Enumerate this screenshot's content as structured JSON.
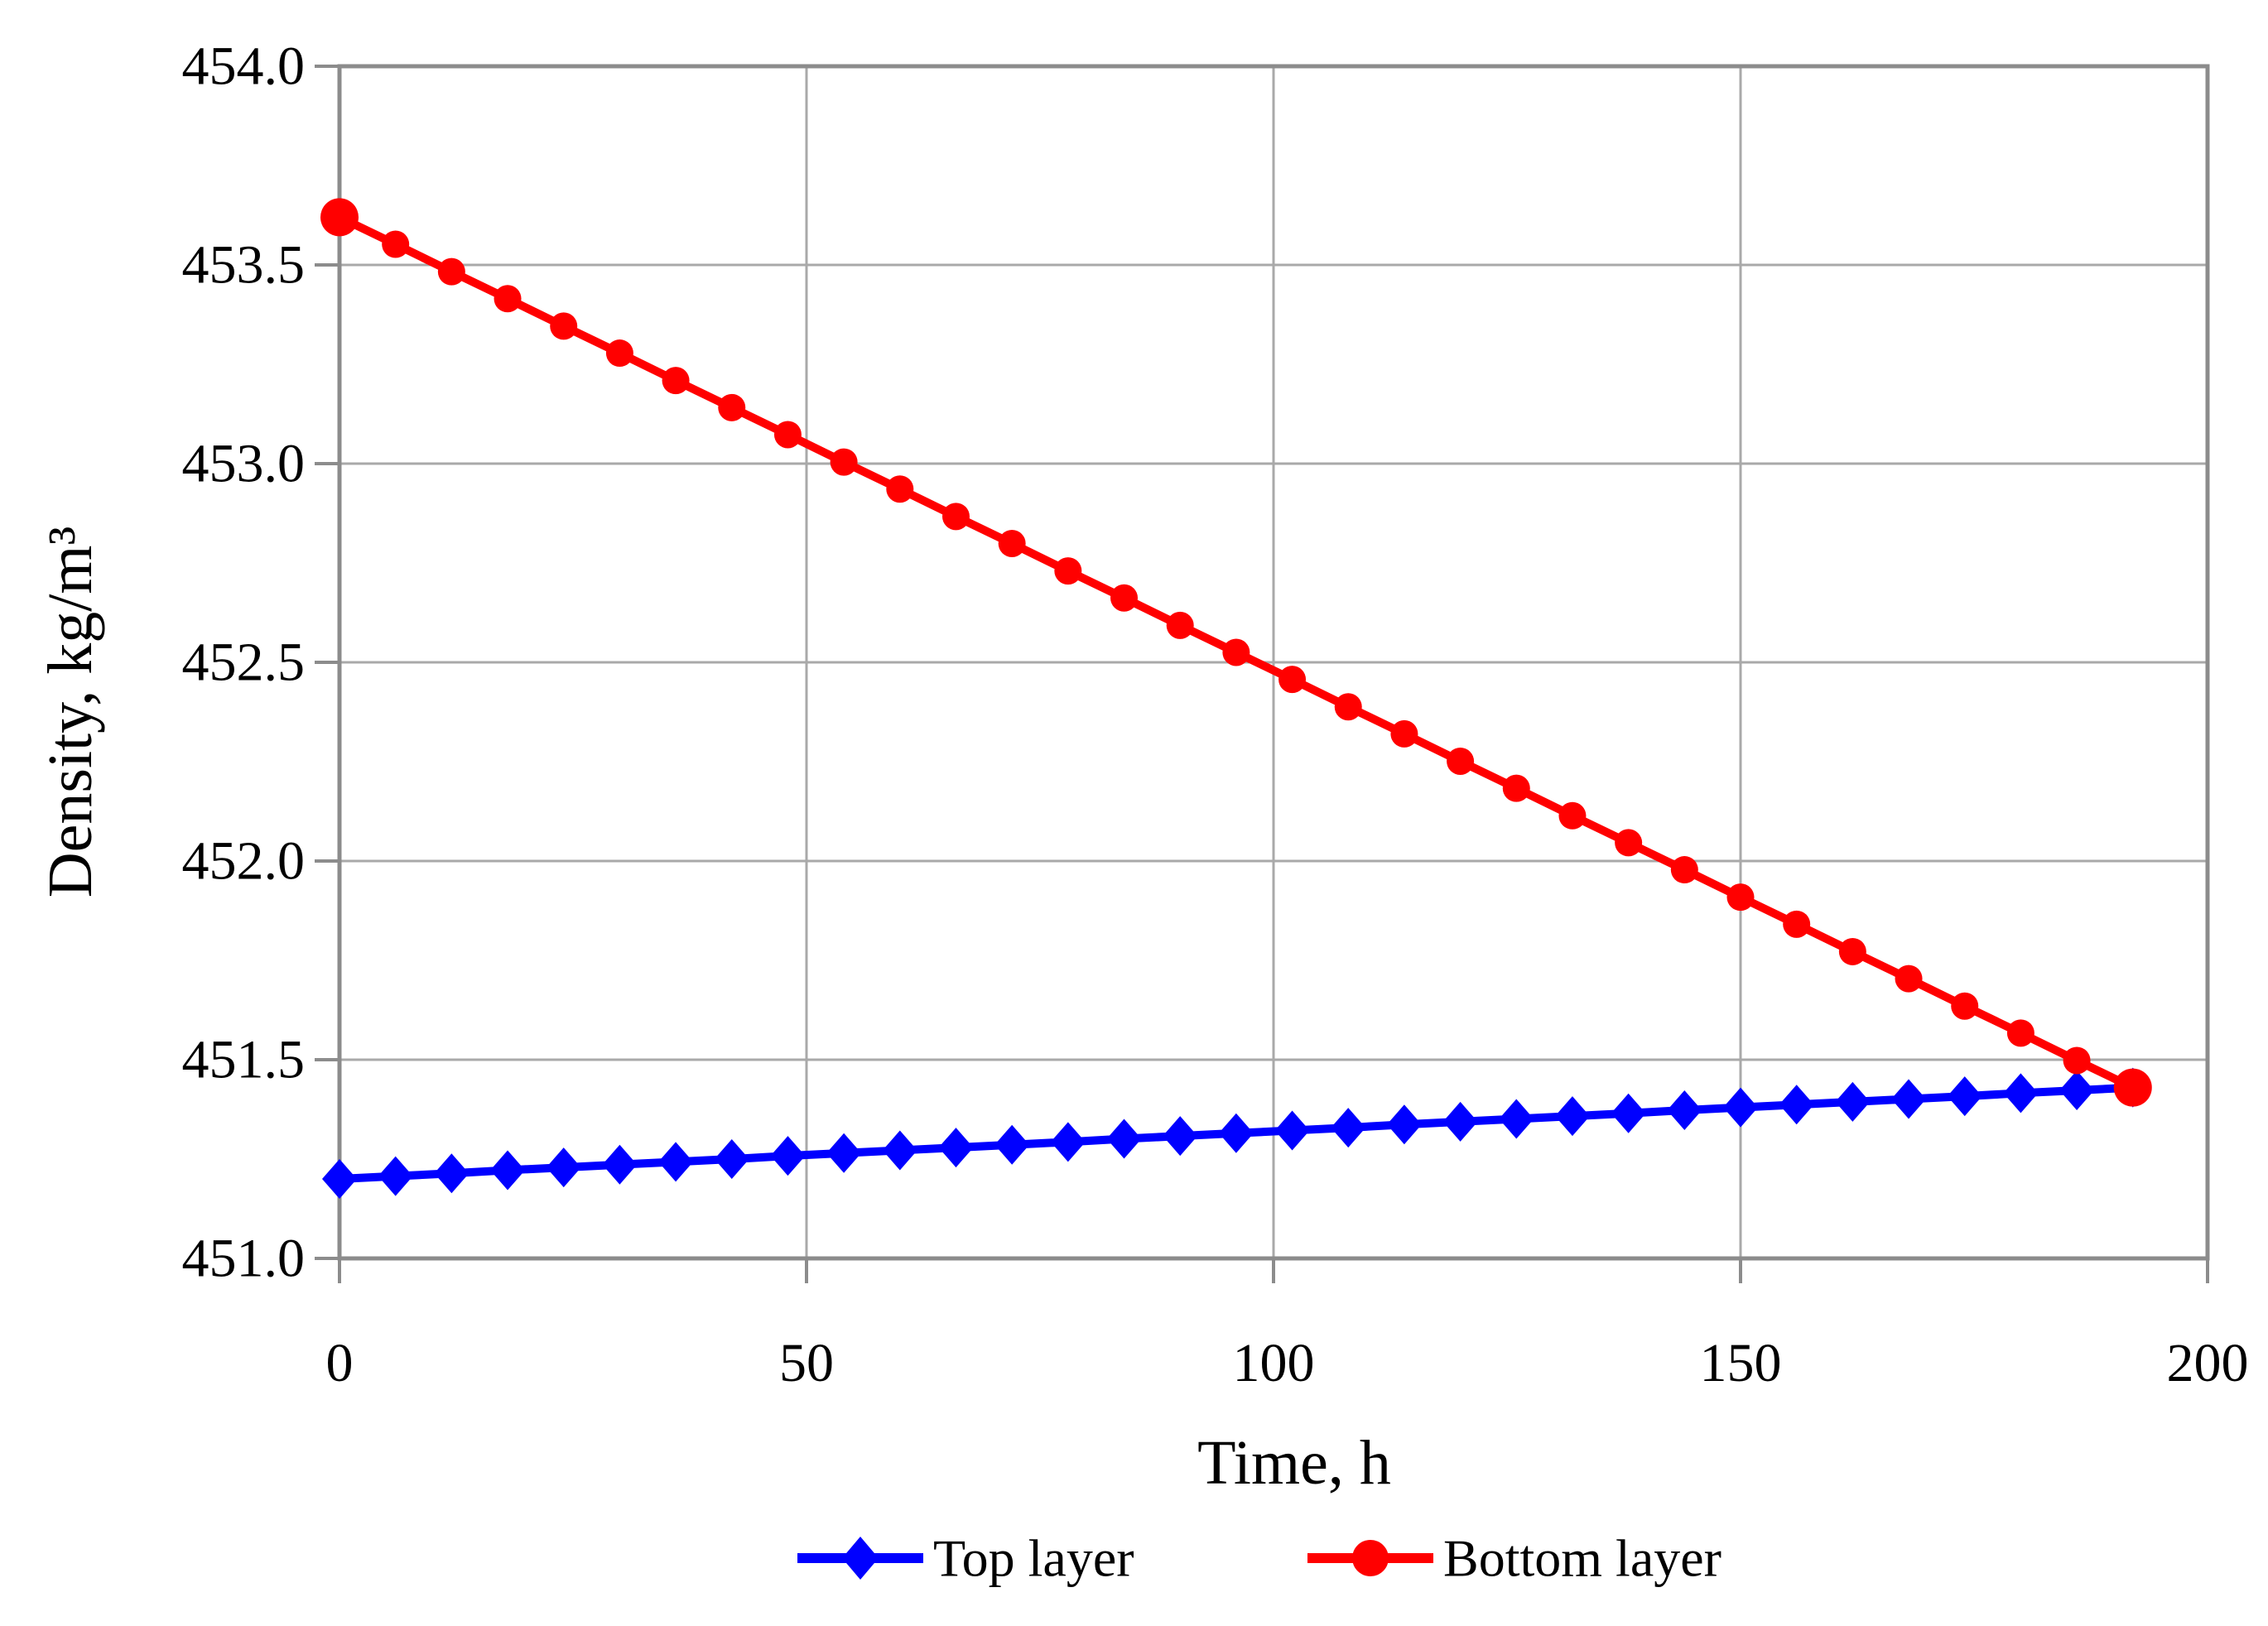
{
  "chart_data": {
    "type": "line",
    "title": "",
    "xlabel": "Time, h",
    "ylabel": "Density, kg/m³",
    "xlim": [
      0,
      200
    ],
    "ylim": [
      451.0,
      454.0
    ],
    "xticks": [
      0,
      50,
      100,
      150,
      200
    ],
    "xtick_labels": [
      "0",
      "50",
      "100",
      "150",
      "200"
    ],
    "yticks": [
      451.0,
      451.5,
      452.0,
      452.5,
      453.0,
      453.5,
      454.0
    ],
    "ytick_labels": [
      "451.0",
      "451.5",
      "452.0",
      "452.5",
      "453.0",
      "453.5",
      "454.0"
    ],
    "grid": true,
    "legend_position": "bottom-center",
    "x": [
      0,
      6,
      12,
      18,
      24,
      30,
      36,
      42,
      48,
      54,
      60,
      66,
      72,
      78,
      84,
      90,
      96,
      102,
      108,
      114,
      120,
      126,
      132,
      138,
      144,
      150,
      156,
      162,
      168,
      174,
      180,
      186,
      192
    ],
    "series": [
      {
        "name": "Top layer",
        "color": "#0000ff",
        "marker": "diamond",
        "values": [
          451.2,
          451.207,
          451.214,
          451.222,
          451.229,
          451.236,
          451.243,
          451.25,
          451.258,
          451.265,
          451.272,
          451.279,
          451.286,
          451.293,
          451.301,
          451.308,
          451.315,
          451.322,
          451.329,
          451.337,
          451.344,
          451.351,
          451.358,
          451.365,
          451.373,
          451.38,
          451.387,
          451.394,
          451.401,
          451.408,
          451.416,
          451.423,
          451.43
        ]
      },
      {
        "name": "Bottom layer",
        "color": "#ff0000",
        "marker": "circle",
        "values": [
          453.62,
          453.552,
          453.483,
          453.415,
          453.346,
          453.278,
          453.209,
          453.141,
          453.073,
          453.004,
          452.936,
          452.867,
          452.799,
          452.73,
          452.662,
          452.593,
          452.525,
          452.457,
          452.388,
          452.32,
          452.251,
          452.183,
          452.114,
          452.046,
          451.978,
          451.909,
          451.841,
          451.772,
          451.704,
          451.635,
          451.567,
          451.498,
          451.43
        ]
      }
    ],
    "colors": {
      "axis": "#8c8c8c",
      "grid": "#a9a9a9",
      "text": "#000000",
      "background": "#ffffff"
    }
  }
}
